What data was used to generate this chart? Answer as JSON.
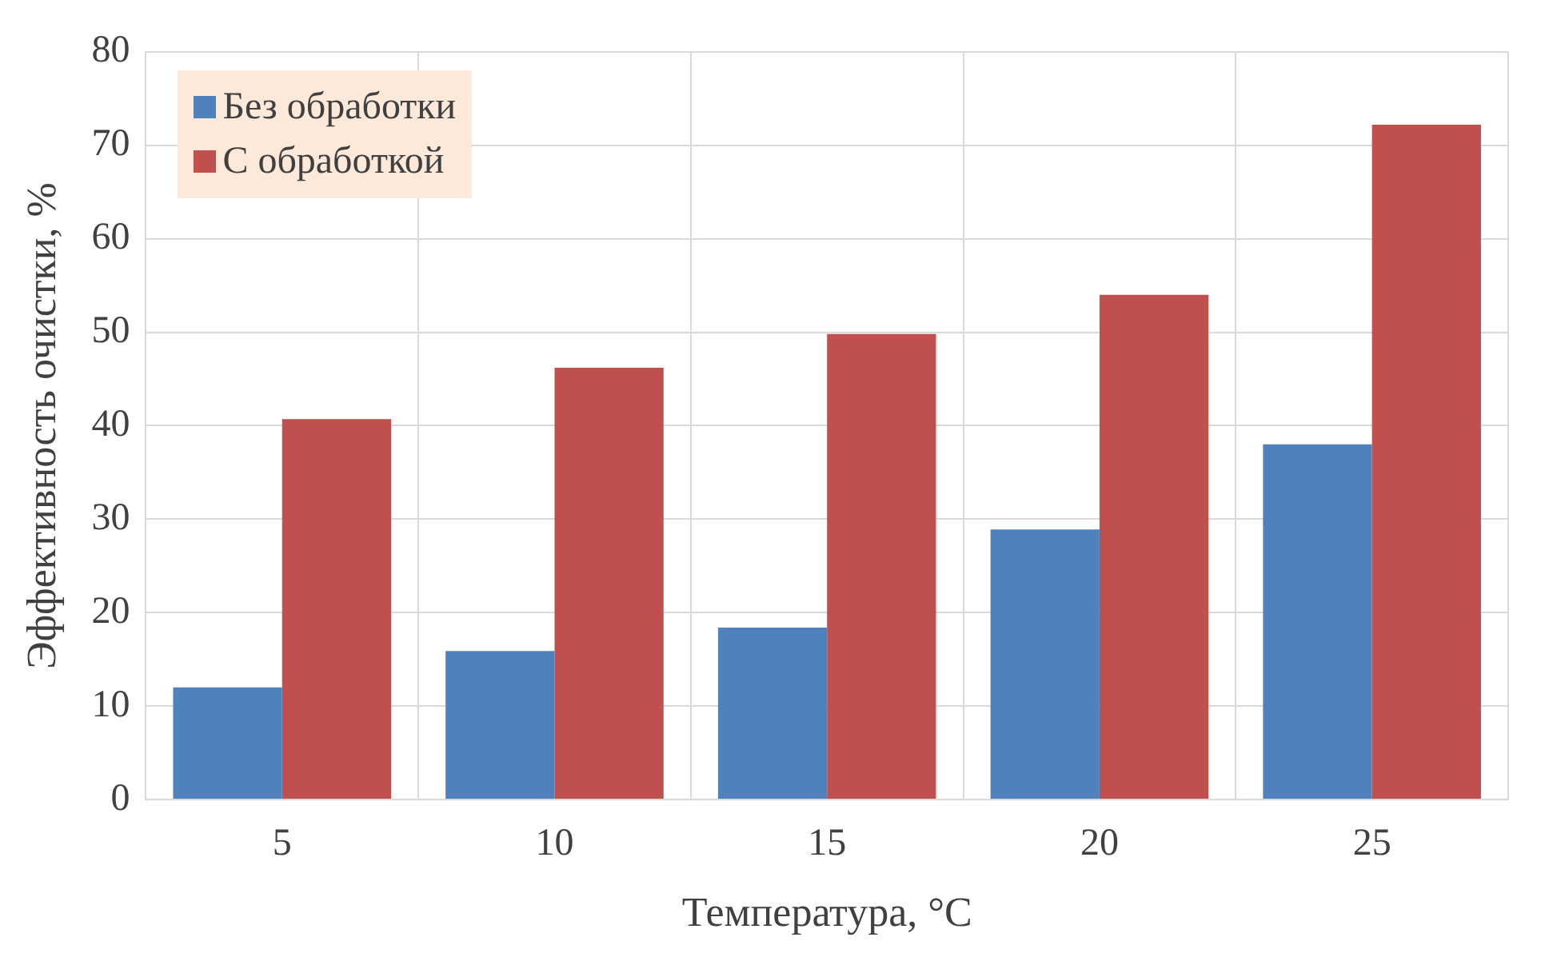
{
  "chart_data": {
    "type": "bar",
    "xlabel": "Температура, °C",
    "ylabel": "Эффективность очистки, %",
    "categories": [
      "5",
      "10",
      "15",
      "20",
      "25"
    ],
    "series": [
      {
        "name": "Без обработки",
        "color": "#4f81bd",
        "values": [
          12.0,
          15.9,
          18.4,
          28.9,
          38.0
        ]
      },
      {
        "name": "С обработкой",
        "color": "#c0504d",
        "values": [
          40.7,
          46.2,
          49.8,
          54.0,
          72.2
        ]
      }
    ],
    "ylim": [
      0,
      80
    ],
    "yticks": [
      0,
      10,
      20,
      30,
      40,
      50,
      60,
      70,
      80
    ],
    "grid": true,
    "legend": "top left"
  }
}
